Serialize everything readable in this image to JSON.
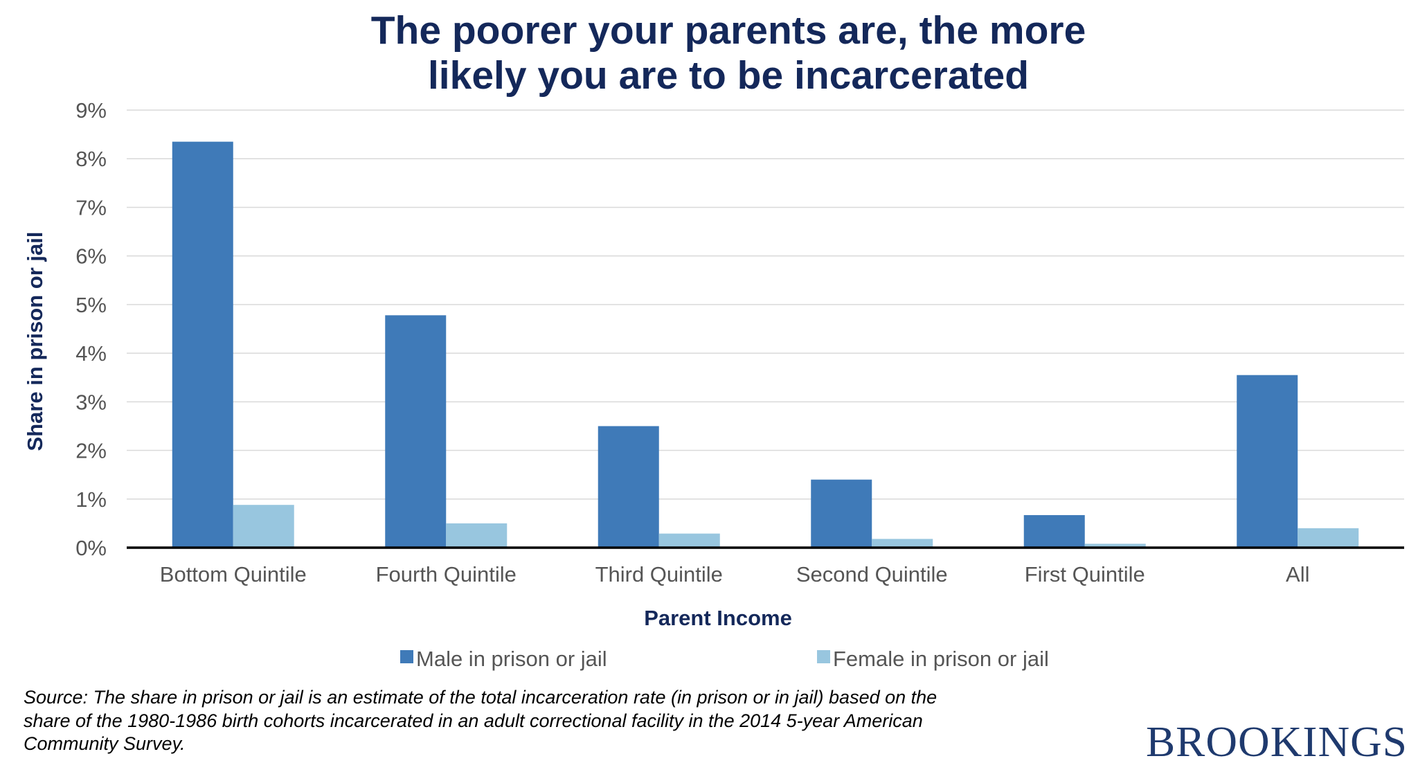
{
  "chart_data": {
    "type": "bar",
    "title_lines": [
      "The poorer your parents are, the more",
      "likely you are to be incarcerated"
    ],
    "xlabel": "Parent Income",
    "ylabel": "Share in prison or jail",
    "categories": [
      "Bottom Quintile",
      "Fourth Quintile",
      "Third Quintile",
      "Second Quintile",
      "First Quintile",
      "All"
    ],
    "series": [
      {
        "name": "Male in prison or jail",
        "color": "#3f7ab8",
        "values": [
          8.35,
          4.78,
          2.5,
          1.4,
          0.67,
          3.55
        ]
      },
      {
        "name": "Female in prison or jail",
        "color": "#98c6df",
        "values": [
          0.88,
          0.5,
          0.29,
          0.18,
          0.08,
          0.4
        ]
      }
    ],
    "ylim": [
      0,
      9
    ],
    "yticks": [
      "0%",
      "1%",
      "2%",
      "3%",
      "4%",
      "5%",
      "6%",
      "7%",
      "8%",
      "9%"
    ],
    "grid": true,
    "legend_position": "bottom-center"
  },
  "source_lines": [
    "Source: The share in prison or jail is an estimate of the total incarceration rate (in prison or in jail) based on the",
    "share of the 1980-1986 birth cohorts incarcerated in an adult correctional facility in the 2014 5-year American",
    "Community Survey."
  ],
  "brand": "BROOKINGS"
}
